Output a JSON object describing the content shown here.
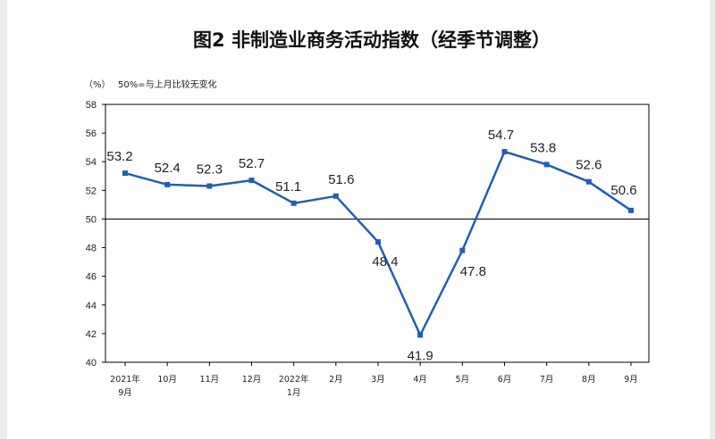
{
  "title": "图2  非制造业商务活动指数（经季节调整）",
  "unit_label": "（%）",
  "reference_note": "50%=与上月比较无变化",
  "colors": {
    "series": "#1f5fb4",
    "axis": "#000000",
    "background": "#ffffff"
  },
  "chart_data": {
    "type": "line",
    "title": "图2  非制造业商务活动指数（经季节调整）",
    "ylabel": "（%）",
    "xlabel": "",
    "ylim": [
      40,
      58
    ],
    "yticks": [
      40,
      42,
      44,
      46,
      48,
      50,
      52,
      54,
      56,
      58
    ],
    "reference_line": 50,
    "grid": false,
    "categories": [
      [
        "2021年",
        "9月"
      ],
      [
        "10月"
      ],
      [
        "11月"
      ],
      [
        "12月"
      ],
      [
        "2022年",
        "1月"
      ],
      [
        "2月"
      ],
      [
        "3月"
      ],
      [
        "4月"
      ],
      [
        "5月"
      ],
      [
        "6月"
      ],
      [
        "7月"
      ],
      [
        "8月"
      ],
      [
        "9月"
      ]
    ],
    "series": [
      {
        "values": [
          53.2,
          52.4,
          52.3,
          52.7,
          51.1,
          51.6,
          48.4,
          41.9,
          47.8,
          54.7,
          53.8,
          52.6,
          50.6
        ]
      }
    ]
  }
}
